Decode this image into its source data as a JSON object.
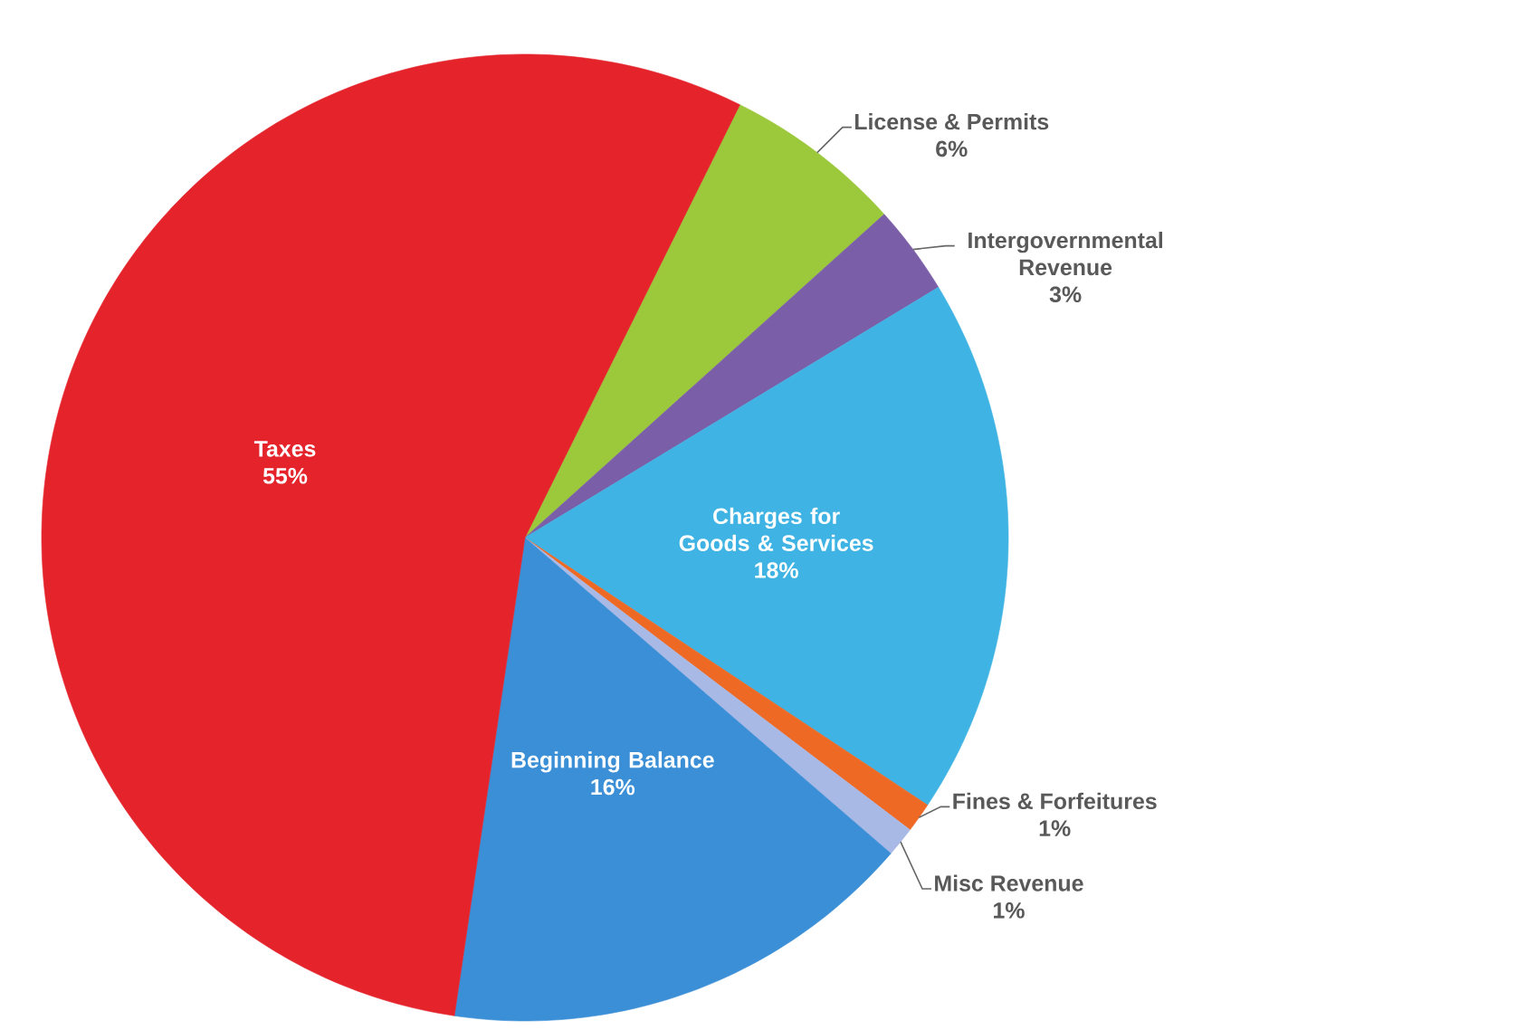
{
  "chart_data": {
    "type": "pie",
    "categories": [
      "License & Permits",
      "Intergovernmental Revenue",
      "Charges for Goods & Services",
      "Fines & Forfeitures",
      "Misc Revenue",
      "Beginning Balance",
      "Taxes"
    ],
    "values": [
      6,
      3,
      18,
      1,
      1,
      16,
      55
    ],
    "value_labels": [
      "6%",
      "3%",
      "18%",
      "1%",
      "1%",
      "16%",
      "55%"
    ],
    "colors": [
      "#9cc83c",
      "#7b5ea8",
      "#3fb3e3",
      "#ee6a24",
      "#a9b9e6",
      "#3b8fd6",
      "#e4232b"
    ]
  }
}
